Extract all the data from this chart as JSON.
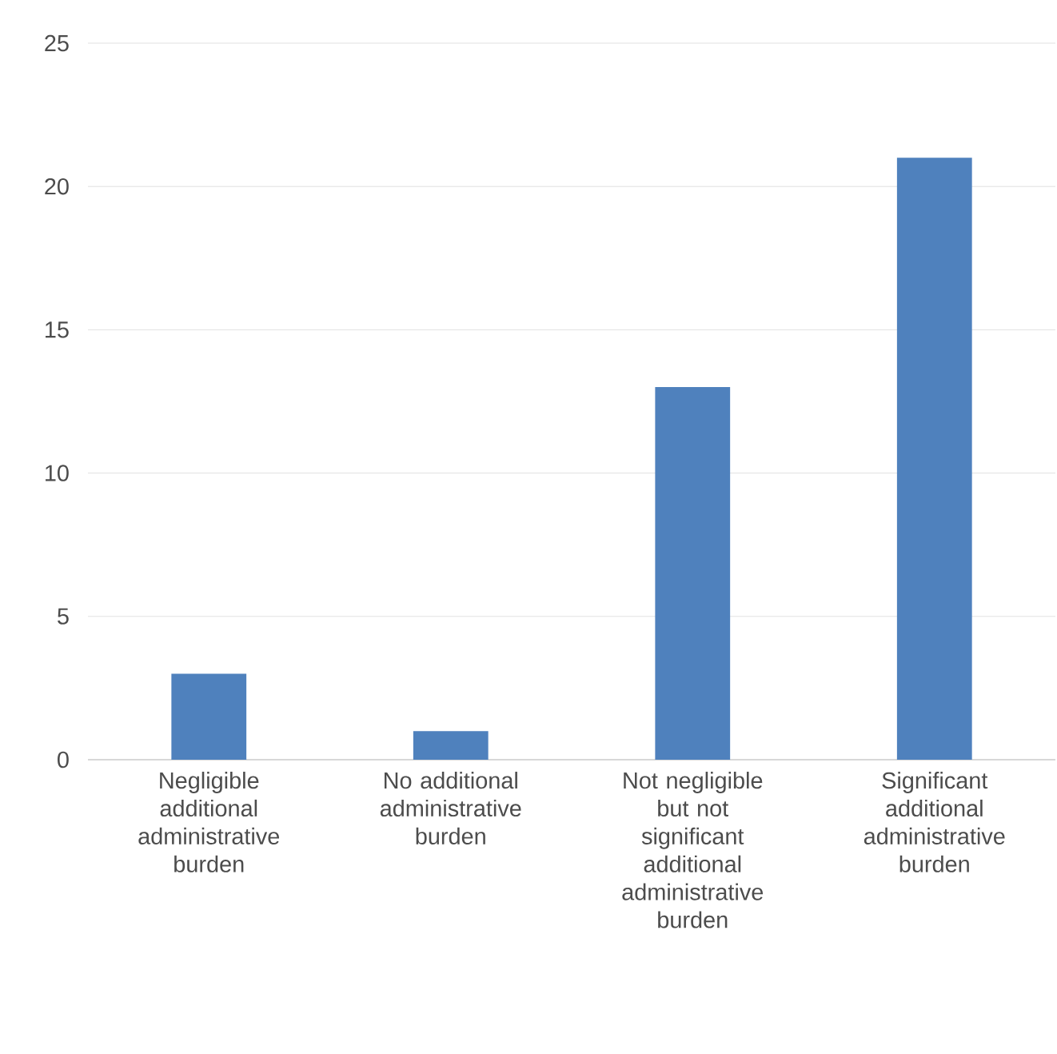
{
  "chart_data": {
    "type": "bar",
    "categories": [
      "Negligible additional administrative burden",
      "No additional administrative burden",
      "Not negligible but not significant additional administrative burden",
      "Significant additional administrative burden"
    ],
    "values": [
      3,
      1,
      13,
      21
    ],
    "color": "#4f81bd",
    "ylim": [
      0,
      25
    ],
    "yticks": [
      0,
      5,
      10,
      15,
      20,
      25
    ],
    "grid": "y"
  }
}
